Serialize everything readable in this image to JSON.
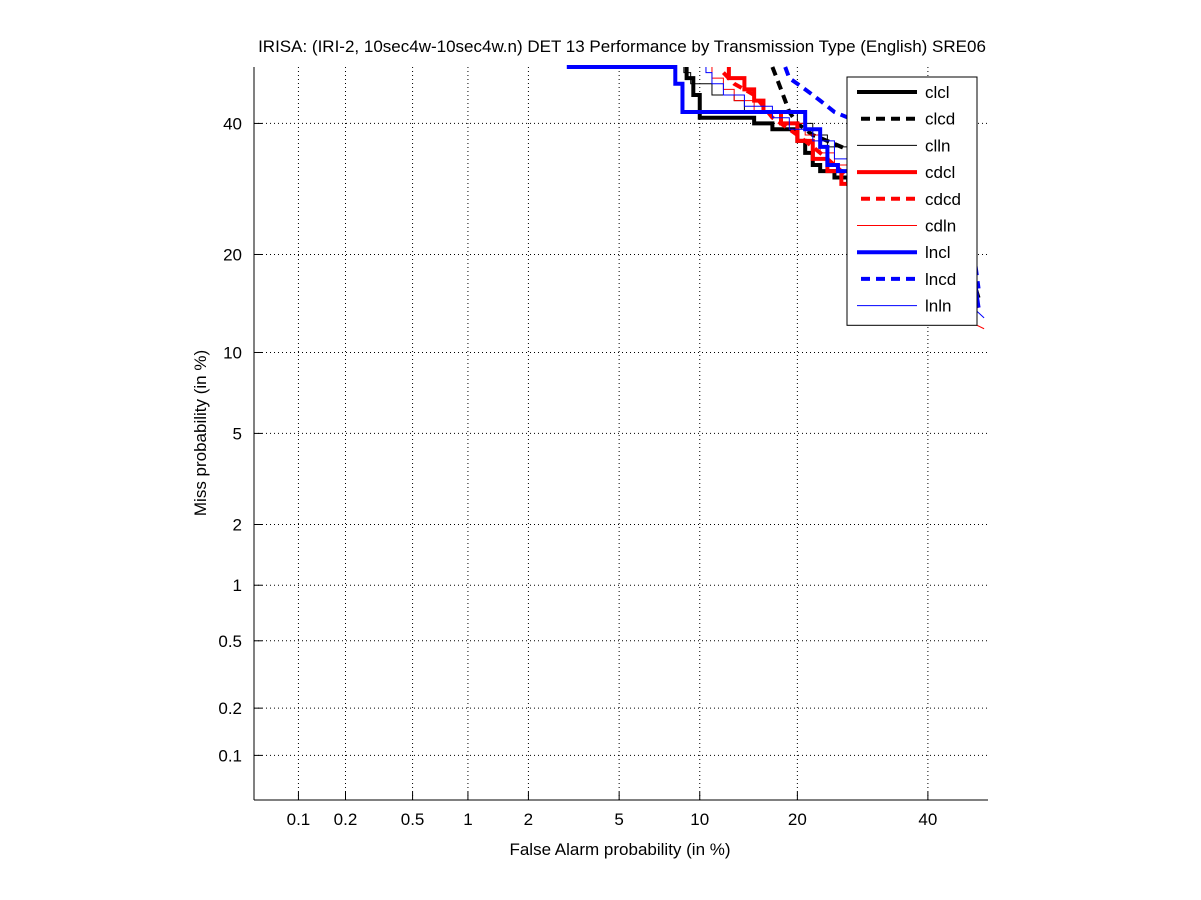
{
  "chart_data": {
    "type": "line",
    "subtype": "DET curve (normal-deviate scaled axes)",
    "title": "IRISA: (IRI-2, 10sec4w-10sec4w.n) DET 13 Performance by Transmission Type (English) SRE06",
    "xlabel": "False Alarm probability (in %)",
    "ylabel": "Miss probability (in %)",
    "xscale": "probit",
    "yscale": "probit",
    "xlim": [
      0.05,
      50.7
    ],
    "ylim": [
      0.05,
      50
    ],
    "xticks": [
      0.1,
      0.2,
      0.5,
      1,
      2,
      5,
      10,
      20,
      40
    ],
    "xtick_labels": [
      "0.1",
      "0.2",
      "0.5",
      "1",
      "2",
      "5",
      "10",
      "20",
      "40"
    ],
    "yticks": [
      0.1,
      0.2,
      0.5,
      1,
      2,
      5,
      10,
      20,
      40
    ],
    "ytick_labels": [
      "0.1",
      "0.2",
      "0.5",
      "1",
      "2",
      "5",
      "10",
      "20",
      "40"
    ],
    "grid": true,
    "legend_position": "top-right",
    "series": [
      {
        "name": "clcl",
        "color": "#000000",
        "style": "solid",
        "weight": "thick",
        "points": [
          [
            9,
            50
          ],
          [
            9,
            48
          ],
          [
            9.5,
            48
          ],
          [
            9.5,
            45
          ],
          [
            10,
            45
          ],
          [
            10,
            41
          ],
          [
            15,
            41
          ],
          [
            15,
            40
          ],
          [
            17,
            40
          ],
          [
            17,
            39
          ],
          [
            20,
            39
          ],
          [
            20,
            37
          ],
          [
            21,
            37
          ],
          [
            21,
            35
          ],
          [
            22,
            35
          ],
          [
            22,
            33
          ],
          [
            23,
            33
          ],
          [
            23,
            32
          ],
          [
            25,
            32
          ],
          [
            25,
            31
          ],
          [
            27,
            31
          ],
          [
            27,
            30
          ],
          [
            30,
            30
          ],
          [
            30,
            28
          ],
          [
            46,
            19
          ],
          [
            47,
            18
          ],
          [
            48,
            17
          ],
          [
            49,
            15
          ]
        ]
      },
      {
        "name": "clcd",
        "color": "#000000",
        "style": "dashed",
        "weight": "thick",
        "points": [
          [
            17,
            50
          ],
          [
            17.5,
            48
          ],
          [
            18,
            46
          ],
          [
            18.5,
            44
          ],
          [
            19,
            42
          ],
          [
            20,
            40
          ],
          [
            21,
            39
          ],
          [
            22,
            38
          ],
          [
            24,
            37
          ],
          [
            26,
            36
          ],
          [
            28,
            35
          ],
          [
            30,
            34
          ],
          [
            47,
            18
          ],
          [
            48,
            17
          ],
          [
            49,
            16
          ]
        ]
      },
      {
        "name": "clln",
        "color": "#000000",
        "style": "solid",
        "weight": "thin",
        "points": [
          [
            8.8,
            50
          ],
          [
            8.8,
            49
          ],
          [
            9.3,
            49
          ],
          [
            9.3,
            47
          ],
          [
            11,
            47
          ],
          [
            11,
            45
          ],
          [
            13,
            45
          ],
          [
            13,
            44
          ],
          [
            14,
            44
          ],
          [
            14,
            42
          ],
          [
            20,
            42
          ],
          [
            20,
            40
          ],
          [
            22,
            40
          ],
          [
            22,
            38
          ],
          [
            24,
            38
          ],
          [
            24,
            36
          ],
          [
            27,
            36
          ],
          [
            27,
            34
          ],
          [
            30,
            34
          ],
          [
            47,
            18
          ],
          [
            49,
            15
          ]
        ]
      },
      {
        "name": "cdcl",
        "color": "#ff0000",
        "style": "solid",
        "weight": "thick",
        "points": [
          [
            12.5,
            50
          ],
          [
            12.5,
            48
          ],
          [
            14,
            48
          ],
          [
            14,
            46
          ],
          [
            15,
            46
          ],
          [
            15,
            44
          ],
          [
            16,
            44
          ],
          [
            16,
            42
          ],
          [
            18,
            42
          ],
          [
            18,
            40
          ],
          [
            20,
            40
          ],
          [
            20,
            37
          ],
          [
            22,
            37
          ],
          [
            22,
            34
          ],
          [
            24,
            34
          ],
          [
            24,
            32
          ],
          [
            26,
            32
          ],
          [
            26,
            30
          ],
          [
            28,
            30
          ],
          [
            28,
            29
          ],
          [
            47,
            17
          ],
          [
            49,
            14
          ]
        ]
      },
      {
        "name": "cdcd",
        "color": "#ff0000",
        "style": "dashed",
        "weight": "thick",
        "points": [
          [
            12,
            49
          ],
          [
            13,
            47
          ],
          [
            14,
            46
          ],
          [
            15,
            45
          ],
          [
            16,
            43
          ],
          [
            17,
            41
          ],
          [
            19,
            39
          ],
          [
            20,
            38
          ],
          [
            22,
            36
          ],
          [
            24,
            34
          ],
          [
            26,
            32
          ],
          [
            28,
            30
          ],
          [
            47,
            16
          ],
          [
            49,
            14
          ]
        ]
      },
      {
        "name": "cdln",
        "color": "#ff0000",
        "style": "solid",
        "weight": "thin",
        "points": [
          [
            11,
            50
          ],
          [
            11,
            48
          ],
          [
            12,
            48
          ],
          [
            12,
            46
          ],
          [
            13,
            46
          ],
          [
            13,
            44
          ],
          [
            15,
            44
          ],
          [
            15,
            42
          ],
          [
            18,
            42
          ],
          [
            18,
            40
          ],
          [
            21,
            40
          ],
          [
            21,
            38
          ],
          [
            23,
            38
          ],
          [
            23,
            35
          ],
          [
            25,
            35
          ],
          [
            25,
            33
          ],
          [
            28,
            33
          ],
          [
            28,
            31
          ],
          [
            30,
            31
          ],
          [
            46,
            13
          ],
          [
            50,
            12
          ]
        ]
      },
      {
        "name": "lncl",
        "color": "#0000ff",
        "style": "solid",
        "weight": "thick",
        "points": [
          [
            3,
            50
          ],
          [
            8.2,
            50
          ],
          [
            8.2,
            47
          ],
          [
            8.7,
            47
          ],
          [
            8.7,
            42
          ],
          [
            21,
            42
          ],
          [
            21,
            39
          ],
          [
            23,
            39
          ],
          [
            23,
            36
          ],
          [
            24,
            36
          ],
          [
            24,
            33
          ],
          [
            25.5,
            33
          ],
          [
            25.5,
            32
          ],
          [
            30,
            32
          ],
          [
            46,
            22
          ],
          [
            47,
            21
          ],
          [
            48,
            18
          ],
          [
            48.5,
            16
          ],
          [
            49,
            14
          ]
        ]
      },
      {
        "name": "lncd",
        "color": "#0000ff",
        "style": "dashed",
        "weight": "thick",
        "points": [
          [
            18.5,
            50
          ],
          [
            19,
            48
          ],
          [
            20,
            47
          ],
          [
            21,
            46
          ],
          [
            22,
            45
          ],
          [
            23,
            44
          ],
          [
            24,
            43
          ],
          [
            25,
            42
          ],
          [
            27,
            41
          ],
          [
            29,
            40
          ],
          [
            30,
            39
          ],
          [
            47,
            23
          ],
          [
            48,
            21
          ],
          [
            49,
            16
          ]
        ]
      },
      {
        "name": "lnln",
        "color": "#0000ff",
        "style": "solid",
        "weight": "thin",
        "points": [
          [
            10.5,
            50
          ],
          [
            10.5,
            49
          ],
          [
            11,
            49
          ],
          [
            11,
            47
          ],
          [
            12,
            47
          ],
          [
            12,
            45
          ],
          [
            14,
            45
          ],
          [
            14,
            43
          ],
          [
            17,
            43
          ],
          [
            17,
            41
          ],
          [
            19,
            41
          ],
          [
            19,
            39
          ],
          [
            22,
            39
          ],
          [
            22,
            37
          ],
          [
            25,
            37
          ],
          [
            25,
            34
          ],
          [
            30,
            34
          ],
          [
            46,
            15
          ],
          [
            48,
            14
          ],
          [
            50,
            13
          ]
        ]
      }
    ]
  }
}
